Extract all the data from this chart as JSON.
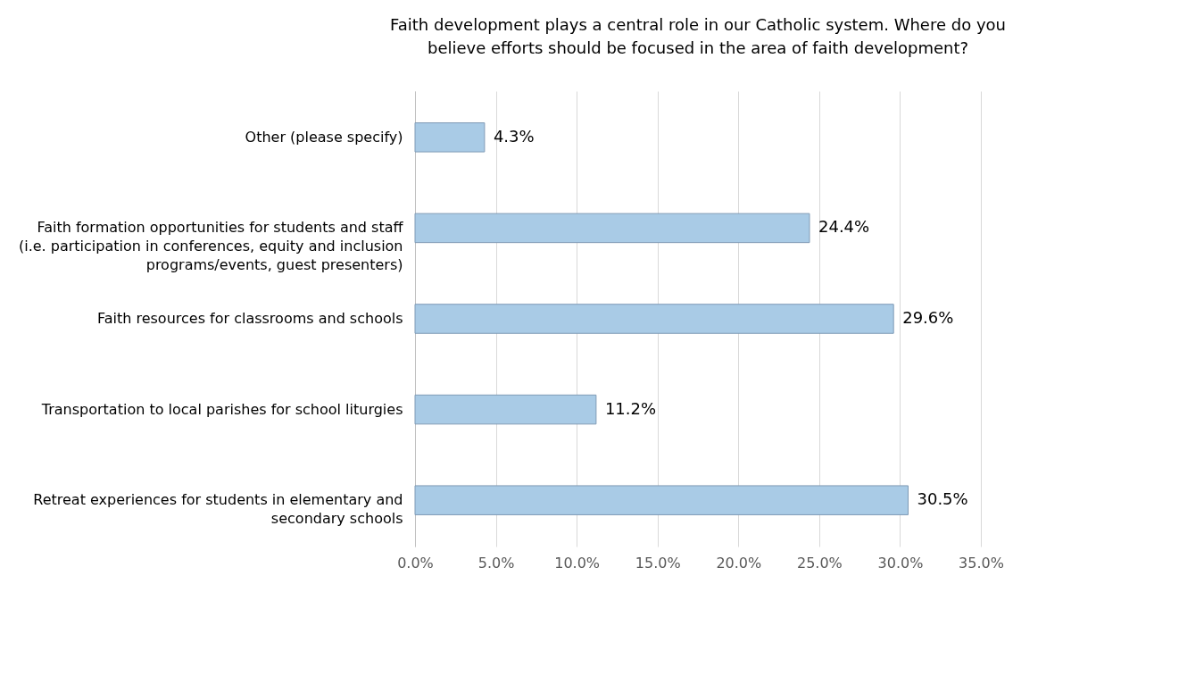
{
  "chart_data": {
    "type": "bar",
    "orientation": "horizontal",
    "title": "Faith development plays a central role in our Catholic system.  Where do you believe efforts should be focused in the area of faith development?",
    "categories": [
      "Other (please specify)",
      "Faith formation opportunities for students and staff (i.e. participation in conferences, equity and inclusion programs/events, guest presenters)",
      "Faith resources for classrooms and schools",
      "Transportation to local parishes for school liturgies",
      "Retreat experiences for students in elementary and secondary schools"
    ],
    "values": [
      4.3,
      24.4,
      29.6,
      11.2,
      30.5
    ],
    "value_labels": [
      "4.3%",
      "24.4%",
      "29.6%",
      "11.2%",
      "30.5%"
    ],
    "color": "#a9cbe6",
    "xlim": [
      0,
      35
    ],
    "xticks": [
      {
        "value": 0,
        "label": "0.0%"
      },
      {
        "value": 5,
        "label": "5.0%"
      },
      {
        "value": 10,
        "label": "10.0%"
      },
      {
        "value": 15,
        "label": "15.0%"
      },
      {
        "value": 20,
        "label": "20.0%"
      },
      {
        "value": 25,
        "label": "25.0%"
      },
      {
        "value": 30,
        "label": "30.0%"
      },
      {
        "value": 35,
        "label": "35.0%"
      }
    ],
    "grid": "x"
  }
}
